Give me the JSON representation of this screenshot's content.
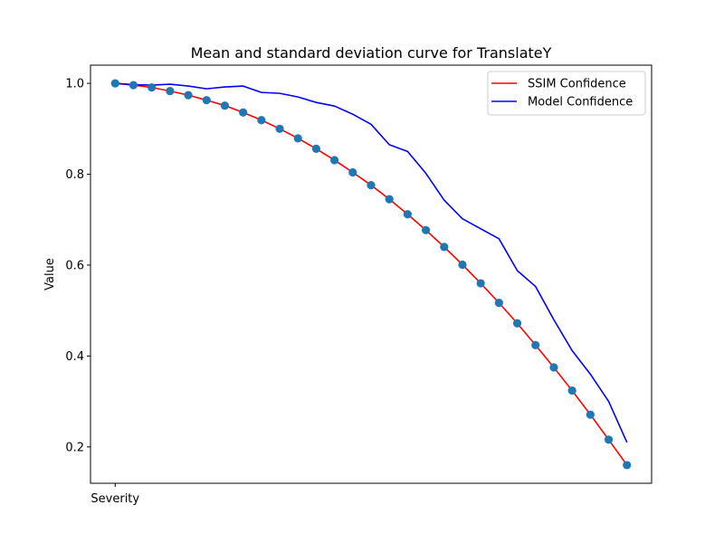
{
  "chart_data": {
    "type": "line",
    "title": "Mean and standard deviation curve for TranslateY",
    "xlabel": "",
    "ylabel": "Value",
    "x_tick_labels": [
      "Severity"
    ],
    "yticks": [
      0.2,
      0.4,
      0.6,
      0.8,
      1.0
    ],
    "ytick_labels": [
      "0.2",
      "0.4",
      "0.6",
      "0.8",
      "1.0"
    ],
    "xlim": [
      -1.35,
      29.35
    ],
    "ylim": [
      0.12,
      1.04
    ],
    "legend_position": "top-right",
    "grid": false,
    "x": [
      0,
      1,
      2,
      3,
      4,
      5,
      6,
      7,
      8,
      9,
      10,
      11,
      12,
      13,
      14,
      15,
      16,
      17,
      18,
      19,
      20,
      21,
      22,
      23,
      24,
      25,
      26,
      27,
      28
    ],
    "series": [
      {
        "name": "SSIM Confidence",
        "color": "#ff0000",
        "markers": true,
        "marker_color": "#1f77b4",
        "values": [
          1.0,
          0.996,
          0.991,
          0.983,
          0.974,
          0.963,
          0.951,
          0.936,
          0.919,
          0.9,
          0.879,
          0.856,
          0.831,
          0.804,
          0.776,
          0.745,
          0.712,
          0.677,
          0.64,
          0.601,
          0.56,
          0.517,
          0.472,
          0.424,
          0.375,
          0.324,
          0.271,
          0.216,
          0.16
        ]
      },
      {
        "name": "Model Confidence",
        "color": "#0000ff",
        "markers": false,
        "values": [
          1.0,
          0.997,
          0.996,
          0.998,
          0.994,
          0.988,
          0.992,
          0.994,
          0.98,
          0.978,
          0.97,
          0.958,
          0.95,
          0.932,
          0.91,
          0.865,
          0.85,
          0.802,
          0.743,
          0.702,
          0.68,
          0.658,
          0.588,
          0.553,
          0.48,
          0.412,
          0.36,
          0.3,
          0.21
        ]
      }
    ]
  }
}
